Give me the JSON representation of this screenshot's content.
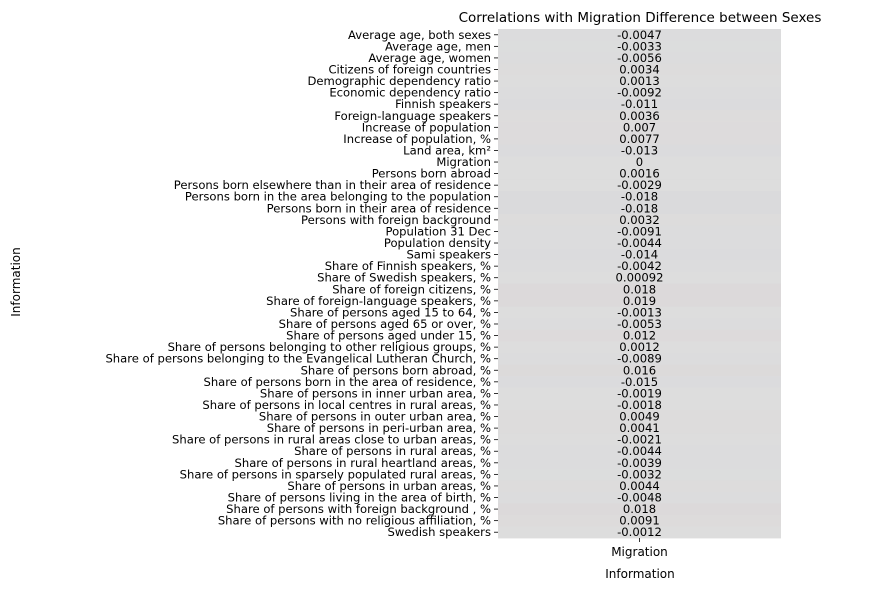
{
  "chart_data": {
    "type": "heatmap",
    "title": "Correlations with Migration Difference between Sexes",
    "xlabel": "Information",
    "ylabel": "Information",
    "columns": [
      "Migration"
    ],
    "colorbar": false,
    "colormap": "coolwarm",
    "color_range": [
      -1,
      1
    ],
    "rows": [
      {
        "label": "Average age, both sexes",
        "value": -0.0047,
        "text": "-0.0047"
      },
      {
        "label": "Average age, men",
        "value": -0.0033,
        "text": "-0.0033"
      },
      {
        "label": "Average age, women",
        "value": -0.0056,
        "text": "-0.0056"
      },
      {
        "label": "Citizens of foreign countries",
        "value": 0.0034,
        "text": "0.0034"
      },
      {
        "label": "Demographic dependency ratio",
        "value": 0.0013,
        "text": "0.0013"
      },
      {
        "label": "Economic dependency ratio",
        "value": -0.0092,
        "text": "-0.0092"
      },
      {
        "label": "Finnish speakers",
        "value": -0.011,
        "text": "-0.011"
      },
      {
        "label": "Foreign-language speakers",
        "value": 0.0036,
        "text": "0.0036"
      },
      {
        "label": "Increase of population",
        "value": 0.007,
        "text": "0.007"
      },
      {
        "label": "Increase of population, %",
        "value": 0.0077,
        "text": "0.0077"
      },
      {
        "label": "Land area, km²",
        "value": -0.013,
        "text": "-0.013"
      },
      {
        "label": "Migration",
        "value": 0,
        "text": "0"
      },
      {
        "label": "Persons born abroad",
        "value": 0.0016,
        "text": "0.0016"
      },
      {
        "label": "Persons born elsewhere than in their area of residence",
        "value": -0.0029,
        "text": "-0.0029"
      },
      {
        "label": "Persons born in the area belonging to the population",
        "value": -0.018,
        "text": "-0.018"
      },
      {
        "label": "Persons born in their area of residence",
        "value": -0.018,
        "text": "-0.018"
      },
      {
        "label": "Persons with foreign background",
        "value": 0.0032,
        "text": "0.0032"
      },
      {
        "label": "Population 31 Dec",
        "value": -0.0091,
        "text": "-0.0091"
      },
      {
        "label": "Population density",
        "value": -0.0044,
        "text": "-0.0044"
      },
      {
        "label": "Sami speakers",
        "value": -0.014,
        "text": "-0.014"
      },
      {
        "label": "Share of Finnish speakers, %",
        "value": -0.0042,
        "text": "-0.0042"
      },
      {
        "label": "Share of Swedish speakers, %",
        "value": 0.00092,
        "text": "0.00092"
      },
      {
        "label": "Share of foreign citizens, %",
        "value": 0.018,
        "text": "0.018"
      },
      {
        "label": "Share of foreign-language speakers, %",
        "value": 0.019,
        "text": "0.019"
      },
      {
        "label": "Share of persons aged 15 to 64, %",
        "value": -0.0013,
        "text": "-0.0013"
      },
      {
        "label": "Share of persons aged 65 or over, %",
        "value": -0.0053,
        "text": "-0.0053"
      },
      {
        "label": "Share of persons aged under 15, %",
        "value": 0.012,
        "text": "0.012"
      },
      {
        "label": "Share of persons belonging to other religious groups, %",
        "value": 0.0012,
        "text": "0.0012"
      },
      {
        "label": "Share of persons belonging to the Evangelical Lutheran Church, %",
        "value": -0.0089,
        "text": "-0.0089"
      },
      {
        "label": "Share of persons born abroad, %",
        "value": 0.016,
        "text": "0.016"
      },
      {
        "label": "Share of persons born in the area of residence, %",
        "value": -0.015,
        "text": "-0.015"
      },
      {
        "label": "Share of persons in inner urban area, %",
        "value": -0.0019,
        "text": "-0.0019"
      },
      {
        "label": "Share of persons in local centres in rural areas, %",
        "value": -0.0018,
        "text": "-0.0018"
      },
      {
        "label": "Share of persons in outer urban area, %",
        "value": 0.0049,
        "text": "0.0049"
      },
      {
        "label": "Share of persons in peri-urban area, %",
        "value": 0.0041,
        "text": "0.0041"
      },
      {
        "label": "Share of persons in rural areas close to urban areas, %",
        "value": -0.0021,
        "text": "-0.0021"
      },
      {
        "label": "Share of persons in rural areas, %",
        "value": -0.0044,
        "text": "-0.0044"
      },
      {
        "label": "Share of persons in rural heartland areas, %",
        "value": -0.0039,
        "text": "-0.0039"
      },
      {
        "label": "Share of persons in sparsely populated rural areas, %",
        "value": -0.0032,
        "text": "-0.0032"
      },
      {
        "label": "Share of persons in urban areas, %",
        "value": 0.0044,
        "text": "0.0044"
      },
      {
        "label": "Share of persons living in the area of birth, %",
        "value": -0.0048,
        "text": "-0.0048"
      },
      {
        "label": "Share of persons with foreign background , %",
        "value": 0.018,
        "text": "0.018"
      },
      {
        "label": "Share of persons with no religious affiliation, %",
        "value": 0.0091,
        "text": "0.0091"
      },
      {
        "label": "Swedish speakers",
        "value": -0.0012,
        "text": "-0.0012"
      }
    ]
  }
}
